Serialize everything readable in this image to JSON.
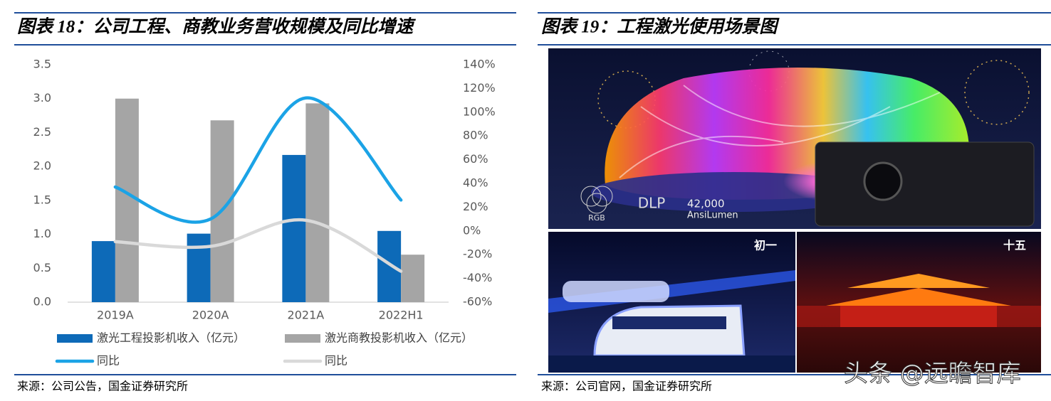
{
  "figure_left": {
    "title": "图表 18：公司工程、商教业务营收规模及同比增速",
    "source": "来源：公司公告，国金证券研究所"
  },
  "chart_data": {
    "type": "bar",
    "categories": [
      "2019A",
      "2020A",
      "2021A",
      "2022H1"
    ],
    "series": [
      {
        "name": "激光工程投影机收入（亿元）",
        "color": "#0d6ab8",
        "values": [
          0.9,
          1.01,
          2.17,
          1.05
        ]
      },
      {
        "name": "激光商教投影机收入（亿元）",
        "color": "#a5a5a5",
        "values": [
          3.0,
          2.68,
          2.93,
          0.7
        ]
      },
      {
        "name": "同比",
        "color": "#1ba3e6",
        "type": "line",
        "axis": "y2",
        "values": [
          37,
          10,
          112,
          26
        ]
      },
      {
        "name": "同比",
        "color": "#d9d9d9",
        "type": "line",
        "axis": "y2",
        "values": [
          -9,
          -13,
          9,
          -34
        ]
      }
    ],
    "ylim": [
      0,
      3.5
    ],
    "yticks": [
      {
        "value": 0,
        "label": "0.0"
      },
      0.5,
      {
        "value": 1,
        "label": "1.0"
      },
      1.5,
      {
        "value": 2,
        "label": "2.0"
      },
      2.5,
      {
        "value": 3,
        "label": "3.0"
      },
      3.5
    ],
    "y2lim": [
      -60,
      140
    ],
    "y2ticks": [
      {
        "value": -60,
        "label": "-60%"
      },
      {
        "value": -40,
        "label": "-40%"
      },
      {
        "value": -20,
        "label": "-20%"
      },
      {
        "value": 0,
        "label": "0%"
      },
      {
        "value": 20,
        "label": "20%"
      },
      {
        "value": 40,
        "label": "40%"
      },
      {
        "value": 60,
        "label": "60%"
      },
      {
        "value": 80,
        "label": "80%"
      },
      {
        "value": 100,
        "label": "100%"
      },
      {
        "value": 120,
        "label": "120%"
      },
      {
        "value": 140,
        "label": "140%"
      }
    ],
    "grid": false,
    "legend": "bottom"
  },
  "figure_right": {
    "title": "图表 19：工程激光使用场景图",
    "source": "来源：公司官网，国金证券研究所",
    "image_texts": {
      "logo1": "RGB",
      "logo2": "DLP",
      "lumen_value": "42,000",
      "lumen_unit": "AnsiLumen",
      "day1": "初一",
      "day15": "十五"
    }
  },
  "watermark": "头条 @远瞻智库"
}
